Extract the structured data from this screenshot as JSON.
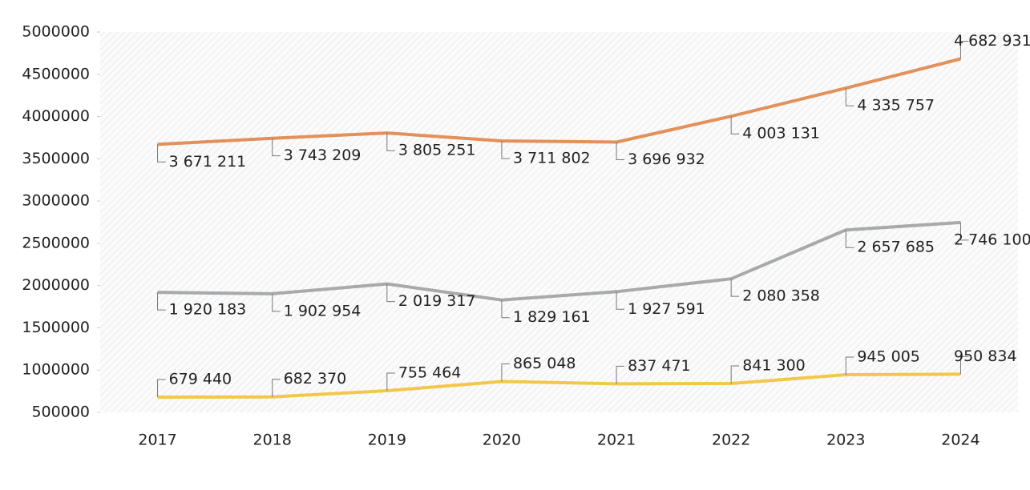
{
  "chart_data": {
    "type": "line",
    "categories": [
      "2017",
      "2018",
      "2019",
      "2020",
      "2021",
      "2022",
      "2023",
      "2024"
    ],
    "series": [
      {
        "color": "#e3915a",
        "values": [
          3671211,
          3743209,
          3805251,
          3711802,
          3696932,
          4003131,
          4335757,
          4682931
        ],
        "value_labels": [
          "3 671 211",
          "3 743 209",
          "3 805 251",
          "3 711 802",
          "3 696 932",
          "4 003 131",
          "4 335 757",
          "4 682 931"
        ]
      },
      {
        "color": "#a7a9ab",
        "values": [
          1920183,
          1902954,
          2019317,
          1829161,
          1927591,
          2080358,
          2657685,
          2746100
        ],
        "value_labels": [
          "1 920 183",
          "1 902 954",
          "2 019 317",
          "1 829 161",
          "1 927 591",
          "2 080 358",
          "2 657 685",
          "2 746 100"
        ]
      },
      {
        "color": "#f2c84b",
        "values": [
          679440,
          682370,
          755464,
          865048,
          837471,
          841300,
          945005,
          950834
        ],
        "value_labels": [
          "679 440",
          "682 370",
          "755 464",
          "865 048",
          "837 471",
          "841 300",
          "945 005",
          "950 834"
        ]
      }
    ],
    "ylim": [
      500000,
      5000000
    ],
    "yticks": [
      500000,
      1000000,
      1500000,
      2000000,
      2500000,
      3000000,
      3500000,
      4000000,
      4500000,
      5000000
    ]
  }
}
